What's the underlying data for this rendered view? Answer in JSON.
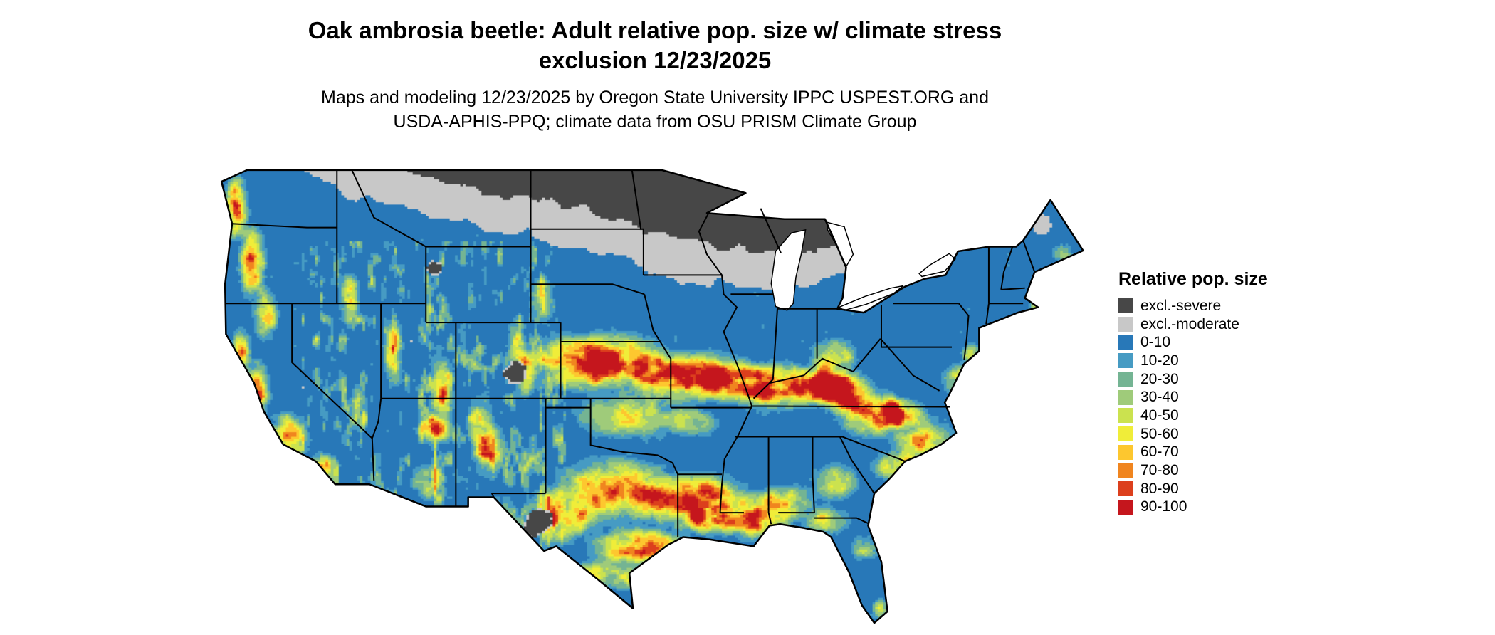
{
  "header": {
    "title_line1": "Oak ambrosia beetle: Adult relative pop. size w/ climate stress",
    "title_line2": "exclusion 12/23/2025",
    "subtitle_line1": "Maps and modeling 12/23/2025 by Oregon State University IPPC USPEST.ORG and",
    "subtitle_line2": "USDA-APHIS-PPQ; climate data from OSU PRISM Climate Group"
  },
  "map": {
    "region": "Continental United States",
    "border_color": "#000000",
    "water_color": "#ffffff"
  },
  "legend": {
    "title": "Relative pop. size",
    "items": [
      {
        "label": "excl.-severe",
        "color": "#474747"
      },
      {
        "label": "excl.-moderate",
        "color": "#c8c8c8"
      },
      {
        "label": "0-10",
        "color": "#2878b8"
      },
      {
        "label": "10-20",
        "color": "#469bc3"
      },
      {
        "label": "20-30",
        "color": "#74b493"
      },
      {
        "label": "30-40",
        "color": "#9fcb7a"
      },
      {
        "label": "40-50",
        "color": "#cbe24f"
      },
      {
        "label": "50-60",
        "color": "#f0ed39"
      },
      {
        "label": "60-70",
        "color": "#fdc72f"
      },
      {
        "label": "70-80",
        "color": "#f0851f"
      },
      {
        "label": "80-90",
        "color": "#dc3f1d"
      },
      {
        "label": "90-100",
        "color": "#c5161d"
      }
    ]
  }
}
